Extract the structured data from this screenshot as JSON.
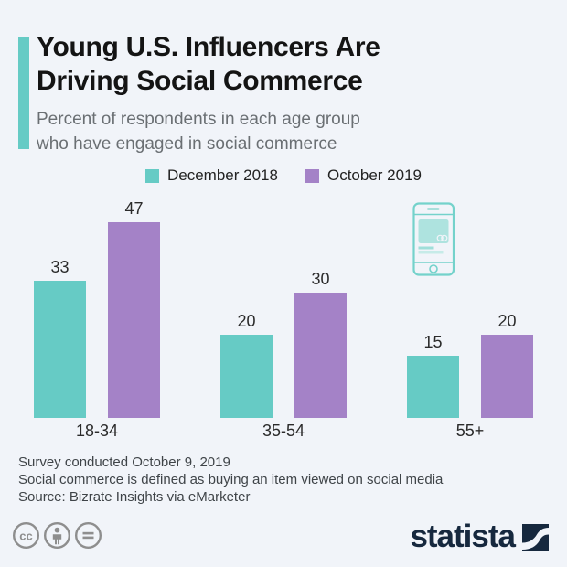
{
  "header": {
    "title_line1": "Young U.S. Influencers Are",
    "title_line2": "Driving Social Commerce",
    "subtitle_line1": "Percent of respondents in each age group",
    "subtitle_line2": "who have engaged in social commerce"
  },
  "chart_data": {
    "type": "bar",
    "title": "Young U.S. Influencers Are Driving Social Commerce",
    "subtitle": "Percent of respondents in each age group who have engaged in social commerce",
    "categories": [
      "18-34",
      "35-54",
      "55+"
    ],
    "series": [
      {
        "name": "December 2018",
        "color": "#66CBC5",
        "values": [
          33,
          20,
          15
        ]
      },
      {
        "name": "October 2019",
        "color": "#A482C7",
        "values": [
          47,
          30,
          20
        ]
      }
    ],
    "unit": "percent",
    "ylim": [
      0,
      50
    ],
    "grid": false,
    "legend_position": "top",
    "value_labels_shown": true
  },
  "footer": {
    "note_line1": "Survey conducted October 9, 2019",
    "note_line2": "Social commerce is defined as buying an item viewed on social media",
    "source_line": "Source: Bizrate Insights via eMarketer"
  },
  "branding": {
    "logo_text": "statista",
    "license_icons": [
      "creative-commons",
      "attribution",
      "no-derivatives"
    ]
  },
  "colors": {
    "background": "#F1F4F9",
    "accent_bar": "#66CBC5",
    "series_december_2018": "#66CBC5",
    "series_october_2019": "#A482C7",
    "title_text": "#141414",
    "subtitle_text": "#6A6F73",
    "footer_text": "#3F4448",
    "license_icon_gray": "#8E8E8E",
    "logo_navy": "#16283E",
    "phone_icon_teal": "#74D2CB"
  }
}
